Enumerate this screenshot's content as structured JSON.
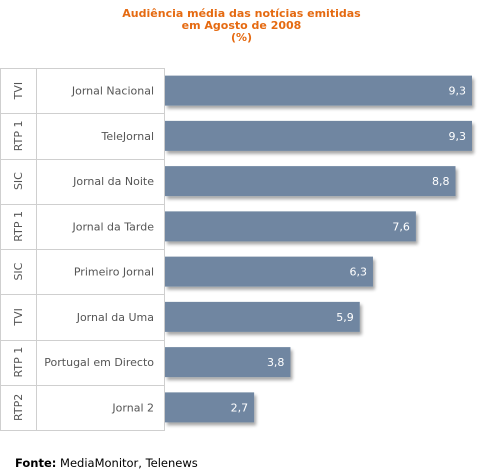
{
  "chart_data": {
    "type": "bar",
    "orientation": "horizontal",
    "title": [
      "Audiência média das notícias emitidas",
      "em Agosto de 2008",
      "(%)"
    ],
    "xlabel": "",
    "ylabel": "",
    "xlim": [
      0,
      9.3
    ],
    "categories": [
      {
        "channel": "TVI",
        "program": "Jornal Nacional"
      },
      {
        "channel": "RTP 1",
        "program": "TeleJornal"
      },
      {
        "channel": "SIC",
        "program": "Jornal da Noite"
      },
      {
        "channel": "RTP 1",
        "program": "Jornal da Tarde"
      },
      {
        "channel": "SIC",
        "program": "Primeiro Jornal"
      },
      {
        "channel": "TVI",
        "program": "Jornal da Uma"
      },
      {
        "channel": "RTP 1",
        "program": "Portugal em Directo"
      },
      {
        "channel": "RTP2",
        "program": "Jornal 2"
      }
    ],
    "values": [
      9.3,
      9.3,
      8.8,
      7.6,
      6.3,
      5.9,
      3.8,
      2.7
    ],
    "value_labels": [
      "9,3",
      "9,3",
      "8,8",
      "7,6",
      "6,3",
      "5,9",
      "3,8",
      "2,7"
    ],
    "bar_color": "#6f86a1",
    "grid": false,
    "legend": "none"
  },
  "title_color": "#e56a11",
  "source": {
    "label": "Fonte:",
    "text": "MediaMonitor, Telenews"
  }
}
